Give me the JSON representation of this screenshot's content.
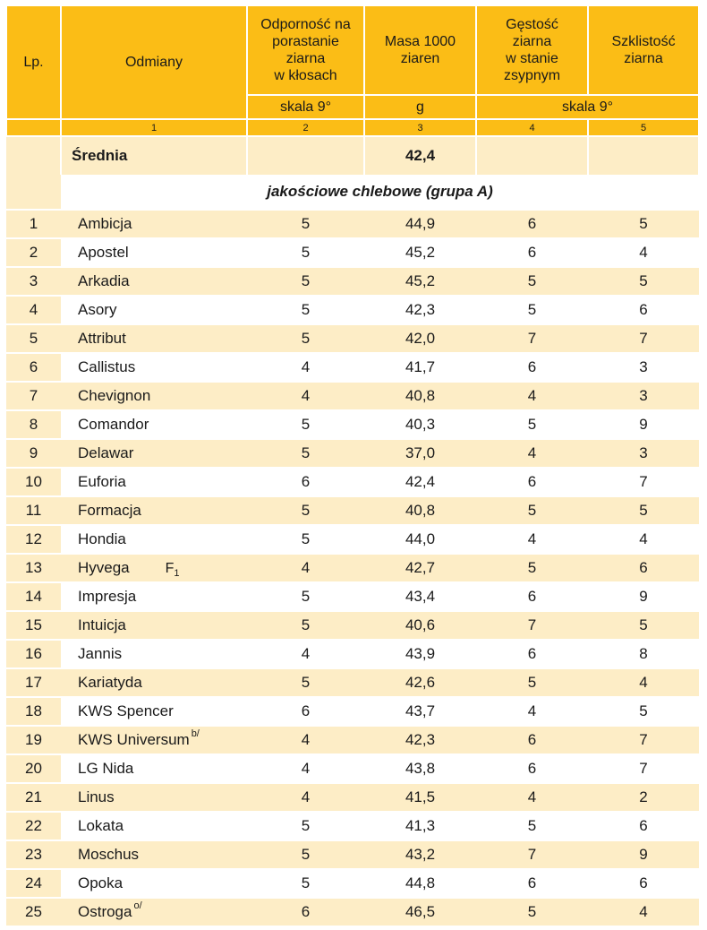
{
  "header": {
    "lp": "Lp.",
    "odmiany": "Odmiany",
    "col2": [
      "Odporność na",
      "porastanie",
      "ziarna",
      "w kłosach"
    ],
    "col3": [
      "Masa 1000",
      "ziaren"
    ],
    "col4": [
      "Gęstość",
      "ziarna",
      "w stanie",
      "zsypnym"
    ],
    "col5": [
      "Szklistość",
      "ziarna"
    ],
    "unit2": "skala 9°",
    "unit3": "g",
    "unit45": "skala 9°",
    "nums": [
      "1",
      "2",
      "3",
      "4",
      "5"
    ]
  },
  "average": {
    "label": "Średnia",
    "col3": "42,4"
  },
  "group": {
    "label": "jakościowe chlebowe (grupa A)"
  },
  "rows": [
    {
      "lp": "1",
      "name": "Ambicja",
      "c2": "5",
      "c3": "44,9",
      "c4": "6",
      "c5": "5"
    },
    {
      "lp": "2",
      "name": "Apostel",
      "c2": "5",
      "c3": "45,2",
      "c4": "6",
      "c5": "4"
    },
    {
      "lp": "3",
      "name": "Arkadia",
      "c2": "5",
      "c3": "45,2",
      "c4": "5",
      "c5": "5"
    },
    {
      "lp": "4",
      "name": "Asory",
      "c2": "5",
      "c3": "42,3",
      "c4": "5",
      "c5": "6"
    },
    {
      "lp": "5",
      "name": "Attribut",
      "c2": "5",
      "c3": "42,0",
      "c4": "7",
      "c5": "7"
    },
    {
      "lp": "6",
      "name": "Callistus",
      "c2": "4",
      "c3": "41,7",
      "c4": "6",
      "c5": "3"
    },
    {
      "lp": "7",
      "name": "Chevignon",
      "c2": "4",
      "c3": "40,8",
      "c4": "4",
      "c5": "3"
    },
    {
      "lp": "8",
      "name": "Comandor",
      "c2": "5",
      "c3": "40,3",
      "c4": "5",
      "c5": "9"
    },
    {
      "lp": "9",
      "name": "Delawar",
      "c2": "5",
      "c3": "37,0",
      "c4": "4",
      "c5": "3"
    },
    {
      "lp": "10",
      "name": "Euforia",
      "c2": "6",
      "c3": "42,4",
      "c4": "6",
      "c5": "7"
    },
    {
      "lp": "11",
      "name": "Formacja",
      "c2": "5",
      "c3": "40,8",
      "c4": "5",
      "c5": "5"
    },
    {
      "lp": "12",
      "name": "Hondia",
      "c2": "5",
      "c3": "44,0",
      "c4": "4",
      "c5": "4"
    },
    {
      "lp": "13",
      "name": "Hyvega",
      "flag": "F",
      "flag_sub": "1",
      "c2": "4",
      "c3": "42,7",
      "c4": "5",
      "c5": "6"
    },
    {
      "lp": "14",
      "name": "Impresja",
      "c2": "5",
      "c3": "43,4",
      "c4": "6",
      "c5": "9"
    },
    {
      "lp": "15",
      "name": "Intuicja",
      "c2": "5",
      "c3": "40,6",
      "c4": "7",
      "c5": "5"
    },
    {
      "lp": "16",
      "name": "Jannis",
      "c2": "4",
      "c3": "43,9",
      "c4": "6",
      "c5": "8"
    },
    {
      "lp": "17",
      "name": "Kariatyda",
      "c2": "5",
      "c3": "42,6",
      "c4": "5",
      "c5": "4"
    },
    {
      "lp": "18",
      "name": "KWS Spencer",
      "c2": "6",
      "c3": "43,7",
      "c4": "4",
      "c5": "5"
    },
    {
      "lp": "19",
      "name": "KWS Universum",
      "note": "b/",
      "c2": "4",
      "c3": "42,3",
      "c4": "6",
      "c5": "7"
    },
    {
      "lp": "20",
      "name": "LG Nida",
      "c2": "4",
      "c3": "43,8",
      "c4": "6",
      "c5": "7"
    },
    {
      "lp": "21",
      "name": "Linus",
      "c2": "4",
      "c3": "41,5",
      "c4": "4",
      "c5": "2"
    },
    {
      "lp": "22",
      "name": "Lokata",
      "c2": "5",
      "c3": "41,3",
      "c4": "5",
      "c5": "6"
    },
    {
      "lp": "23",
      "name": "Moschus",
      "c2": "5",
      "c3": "43,2",
      "c4": "7",
      "c5": "9"
    },
    {
      "lp": "24",
      "name": "Opoka",
      "c2": "5",
      "c3": "44,8",
      "c4": "6",
      "c5": "6"
    },
    {
      "lp": "25",
      "name": "Ostroga",
      "note": "o/",
      "c2": "6",
      "c3": "46,5",
      "c4": "5",
      "c5": "4"
    }
  ]
}
